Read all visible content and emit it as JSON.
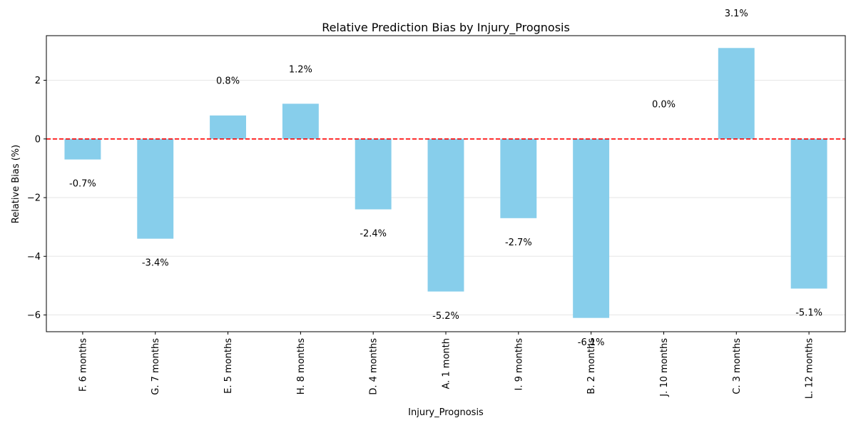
{
  "chart_data": {
    "type": "bar",
    "title": "Relative Prediction Bias by Injury_Prognosis",
    "xlabel": "Injury_Prognosis",
    "ylabel": "Relative Bias (%)",
    "categories": [
      "F. 6 months",
      "G. 7 months",
      "E. 5 months",
      "H. 8 months",
      "D. 4 months",
      "A. 1 month",
      "I. 9 months",
      "B. 2 months",
      "J. 10 months",
      "C. 3 months",
      "L. 12 months"
    ],
    "values": [
      -0.7,
      -3.4,
      0.8,
      1.2,
      -2.4,
      -5.2,
      -2.7,
      -6.1,
      0.0,
      3.1,
      -5.1
    ],
    "value_labels": [
      "-0.7%",
      "-3.4%",
      "0.8%",
      "1.2%",
      "-2.4%",
      "-5.2%",
      "-2.7%",
      "-6.1%",
      "0.0%",
      "3.1%",
      "-5.1%"
    ],
    "ylim": [
      -6.57,
      3.52
    ],
    "yticks": [
      -6,
      -4,
      -2,
      0,
      2
    ],
    "grid": "y",
    "reference_line": 0,
    "colors": {
      "bar": "#87ceeb",
      "reference_line": "#ff0000",
      "grid": "#e6e6e6",
      "axis": "#000000"
    }
  }
}
